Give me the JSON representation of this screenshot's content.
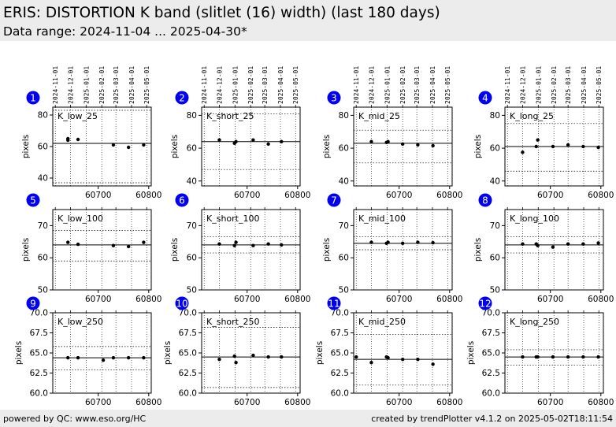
{
  "header": {
    "title": "ERIS: DISTORTION K band (slitlet (16) width) (last 180 days)",
    "subtitle": "Data range: 2024-11-04 ... 2025-04-30*"
  },
  "footer": {
    "left": "powered by QC: www.eso.org/HC",
    "right": "created by trendPlotter v4.1.2 on 2025-05-02T18:11:54"
  },
  "colors": {
    "badge": "#0000ee",
    "header_bg": "#ececec",
    "points": "#000000"
  },
  "date_ticks": [
    "2024-11-01",
    "2024-12-01",
    "2025-01-01",
    "2025-02-01",
    "2025-03-01",
    "2025-04-01",
    "2025-05-01"
  ],
  "chart_data": [
    {
      "index": "1",
      "label": "K_low_25",
      "type": "scatter",
      "ylabel": "pixels",
      "ylim": [
        35,
        85
      ],
      "yticks": [
        "40",
        "60",
        "80"
      ],
      "x_ticks": [
        "60700",
        "60800"
      ],
      "median": 62,
      "dotted": [
        37,
        83
      ],
      "x": [
        60640,
        60640,
        60660,
        60730,
        60760,
        60790
      ],
      "y": [
        65,
        64,
        64.5,
        61,
        59.5,
        61
      ]
    },
    {
      "index": "2",
      "label": "K_short_25",
      "type": "scatter",
      "ylabel": "pixels",
      "ylim": [
        37,
        85
      ],
      "yticks": [
        "40",
        "60",
        "80"
      ],
      "x_ticks": [
        "60700",
        "60800"
      ],
      "median": 64,
      "dotted": [
        47,
        81
      ],
      "x": [
        60645,
        60675,
        60678,
        60712,
        60742,
        60768
      ],
      "y": [
        65,
        63,
        64,
        65,
        62.5,
        64
      ]
    },
    {
      "index": "3",
      "label": "K_mid_25",
      "type": "scatter",
      "ylabel": "pixels",
      "ylim": [
        37,
        85
      ],
      "yticks": [
        "40",
        "60",
        "80"
      ],
      "x_ticks": [
        "60700",
        "60800"
      ],
      "median": 63,
      "dotted": [
        51,
        71
      ],
      "x": [
        60645,
        60675,
        60678,
        60707,
        60737,
        60767
      ],
      "y": [
        64,
        63.5,
        64,
        62.5,
        62,
        61.5
      ]
    },
    {
      "index": "4",
      "label": "K_long_25",
      "type": "scatter",
      "ylabel": "pixels",
      "ylim": [
        37,
        85
      ],
      "yticks": [
        "40",
        "60",
        "80"
      ],
      "x_ticks": [
        "60700",
        "60800"
      ],
      "median": 61,
      "dotted": [
        46,
        75
      ],
      "x": [
        60645,
        60672,
        60675,
        60705,
        60735,
        60765,
        60795
      ],
      "y": [
        57.5,
        61,
        65,
        61,
        62,
        61,
        60.5
      ]
    },
    {
      "index": "5",
      "label": "K_low_100",
      "type": "scatter",
      "ylabel": "pixels",
      "ylim": [
        50,
        75
      ],
      "yticks": [
        "50",
        "60",
        "70"
      ],
      "x_ticks": [
        "60700",
        "60800"
      ],
      "median": 64,
      "dotted": [
        59,
        68.5
      ],
      "x": [
        60640,
        60660,
        60730,
        60760,
        60790
      ],
      "y": [
        64.8,
        64.2,
        63.8,
        63.5,
        64.8
      ]
    },
    {
      "index": "6",
      "label": "K_short_100",
      "type": "scatter",
      "ylabel": "pixels",
      "ylim": [
        50,
        75
      ],
      "yticks": [
        "50",
        "60",
        "70"
      ],
      "x_ticks": [
        "60700",
        "60800"
      ],
      "median": 64,
      "dotted": [
        61.5,
        66.5
      ],
      "x": [
        60645,
        60675,
        60678,
        60712,
        60742,
        60768
      ],
      "y": [
        64.3,
        63.8,
        64.8,
        63.8,
        64.3,
        64
      ]
    },
    {
      "index": "7",
      "label": "K_mid_100",
      "type": "scatter",
      "ylabel": "pixels",
      "ylim": [
        50,
        75
      ],
      "yticks": [
        "50",
        "60",
        "70"
      ],
      "x_ticks": [
        "60700",
        "60800"
      ],
      "median": 64.5,
      "dotted": [
        62.5,
        66.5
      ],
      "x": [
        60645,
        60675,
        60678,
        60707,
        60737,
        60767
      ],
      "y": [
        64.8,
        64.5,
        64.8,
        64.5,
        64.8,
        64.7
      ]
    },
    {
      "index": "8",
      "label": "K_long_100",
      "type": "scatter",
      "ylabel": "pixels",
      "ylim": [
        50,
        75
      ],
      "yticks": [
        "50",
        "60",
        "70"
      ],
      "x_ticks": [
        "60700",
        "60800"
      ],
      "median": 64,
      "dotted": [
        61.5,
        66.5
      ],
      "x": [
        60645,
        60672,
        60675,
        60705,
        60735,
        60765,
        60795
      ],
      "y": [
        64.3,
        64.3,
        63.8,
        63.3,
        64.3,
        64.3,
        64.6
      ]
    },
    {
      "index": "9",
      "label": "K_low_250",
      "type": "scatter",
      "ylabel": "pixels",
      "ylim": [
        60,
        70
      ],
      "yticks": [
        "60.0",
        "62.5",
        "65.0",
        "67.5",
        "70.0"
      ],
      "x_ticks": [
        "60700",
        "60800"
      ],
      "median": 64.4,
      "dotted": [
        62.9,
        65.8
      ],
      "x": [
        60640,
        60660,
        60710,
        60730,
        60760,
        60790
      ],
      "y": [
        64.4,
        64.4,
        64.1,
        64.4,
        64.4,
        64.4
      ]
    },
    {
      "index": "10",
      "label": "K_short_250",
      "type": "scatter",
      "ylabel": "pixels",
      "ylim": [
        60,
        70
      ],
      "yticks": [
        "60.0",
        "62.5",
        "65.0",
        "67.5",
        "70.0"
      ],
      "x_ticks": [
        "60700",
        "60800"
      ],
      "median": 64.5,
      "dotted": [
        60.7,
        68.2
      ],
      "x": [
        60645,
        60675,
        60678,
        60712,
        60742,
        60768
      ],
      "y": [
        64.2,
        64.6,
        63.8,
        64.7,
        64.5,
        64.5
      ]
    },
    {
      "index": "11",
      "label": "K_mid_250",
      "type": "scatter",
      "ylabel": "pixels",
      "ylim": [
        60,
        70
      ],
      "yticks": [
        "60.0",
        "62.5",
        "65.0",
        "67.5",
        "70.0"
      ],
      "x_ticks": [
        "60700",
        "60800"
      ],
      "median": 64.2,
      "dotted": [
        61,
        67.3
      ],
      "x": [
        60615,
        60645,
        60675,
        60678,
        60707,
        60737,
        60767
      ],
      "y": [
        64.5,
        63.8,
        64.5,
        64.4,
        64.2,
        64.2,
        63.6
      ]
    },
    {
      "index": "12",
      "label": "K_long_250",
      "type": "scatter",
      "ylabel": "pixels",
      "ylim": [
        60,
        70
      ],
      "yticks": [
        "60.0",
        "62.5",
        "65.0",
        "67.5",
        "70.0"
      ],
      "x_ticks": [
        "60700",
        "60800"
      ],
      "median": 64.5,
      "dotted": [
        63.5,
        65.4
      ],
      "x": [
        60645,
        60672,
        60675,
        60705,
        60735,
        60765,
        60795
      ],
      "y": [
        64.5,
        64.5,
        64.5,
        64.5,
        64.5,
        64.5,
        64.5
      ]
    }
  ]
}
